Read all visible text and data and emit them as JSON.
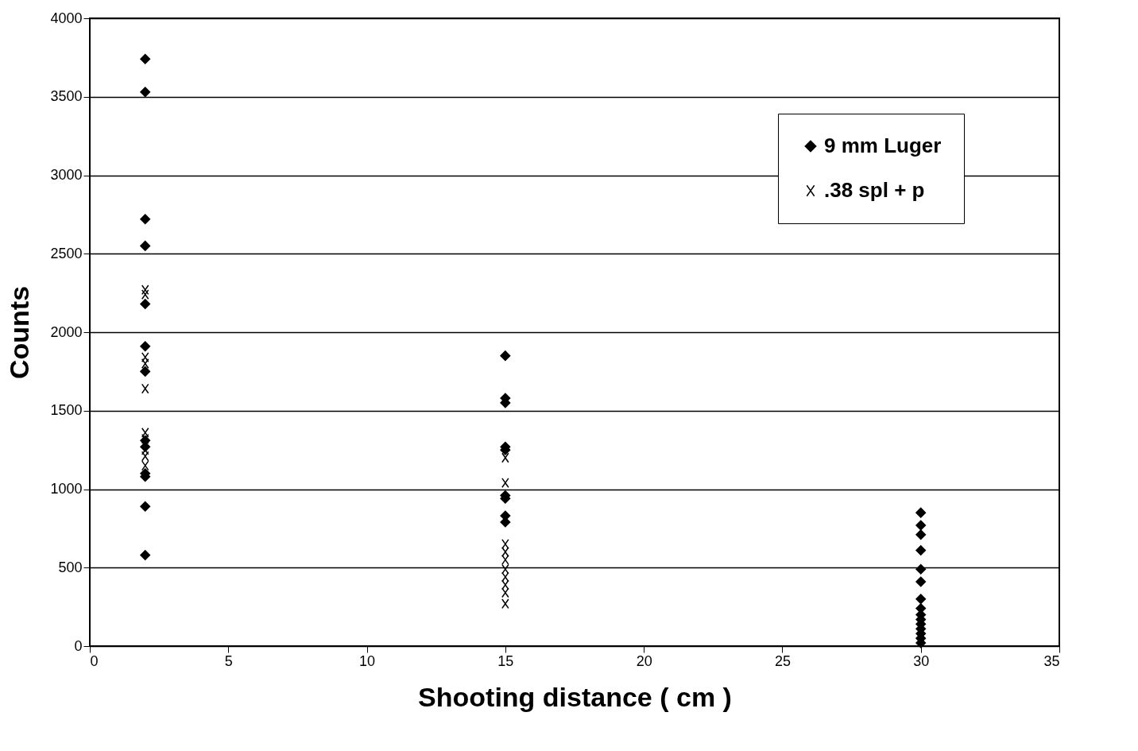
{
  "chart_data": {
    "type": "scatter",
    "xlabel": "Shooting distance ( cm )",
    "ylabel": "Counts",
    "xlim": [
      0,
      35
    ],
    "xticks": [
      0,
      5,
      10,
      15,
      20,
      25,
      30,
      35
    ],
    "ylim": [
      0,
      4000
    ],
    "yticks": [
      0,
      500,
      1000,
      1500,
      2000,
      2500,
      3000,
      3500,
      4000
    ],
    "grid": "y",
    "legend": "top right",
    "series": [
      {
        "name": "9 mm Luger",
        "color": "#000000",
        "marker": "diamond",
        "x": [
          2,
          2,
          2,
          2,
          2,
          2,
          2,
          2,
          2,
          2,
          2,
          2,
          2,
          15,
          15,
          15,
          15,
          15,
          15,
          15,
          15,
          15,
          30,
          30,
          30,
          30,
          30,
          30,
          30,
          30,
          30,
          30,
          30,
          30,
          30,
          30,
          30
        ],
        "values": [
          3740,
          3530,
          2720,
          2550,
          2180,
          1910,
          1750,
          1310,
          1270,
          1100,
          1080,
          890,
          580,
          1850,
          1580,
          1550,
          1270,
          1250,
          960,
          940,
          830,
          790,
          850,
          770,
          710,
          610,
          490,
          410,
          300,
          240,
          200,
          170,
          140,
          110,
          80,
          50,
          20
        ]
      },
      {
        "name": ".38 spl + p",
        "color": "#000000",
        "marker": "cross",
        "x": [
          2,
          2,
          2,
          2,
          2,
          2,
          2,
          2,
          2,
          2,
          15,
          15,
          15,
          15,
          15,
          15,
          15,
          15,
          15,
          15
        ],
        "values": [
          2270,
          2240,
          1840,
          1800,
          1640,
          1360,
          1320,
          1250,
          1210,
          1150,
          1200,
          1040,
          650,
          600,
          550,
          490,
          440,
          390,
          340,
          270
        ]
      }
    ]
  }
}
